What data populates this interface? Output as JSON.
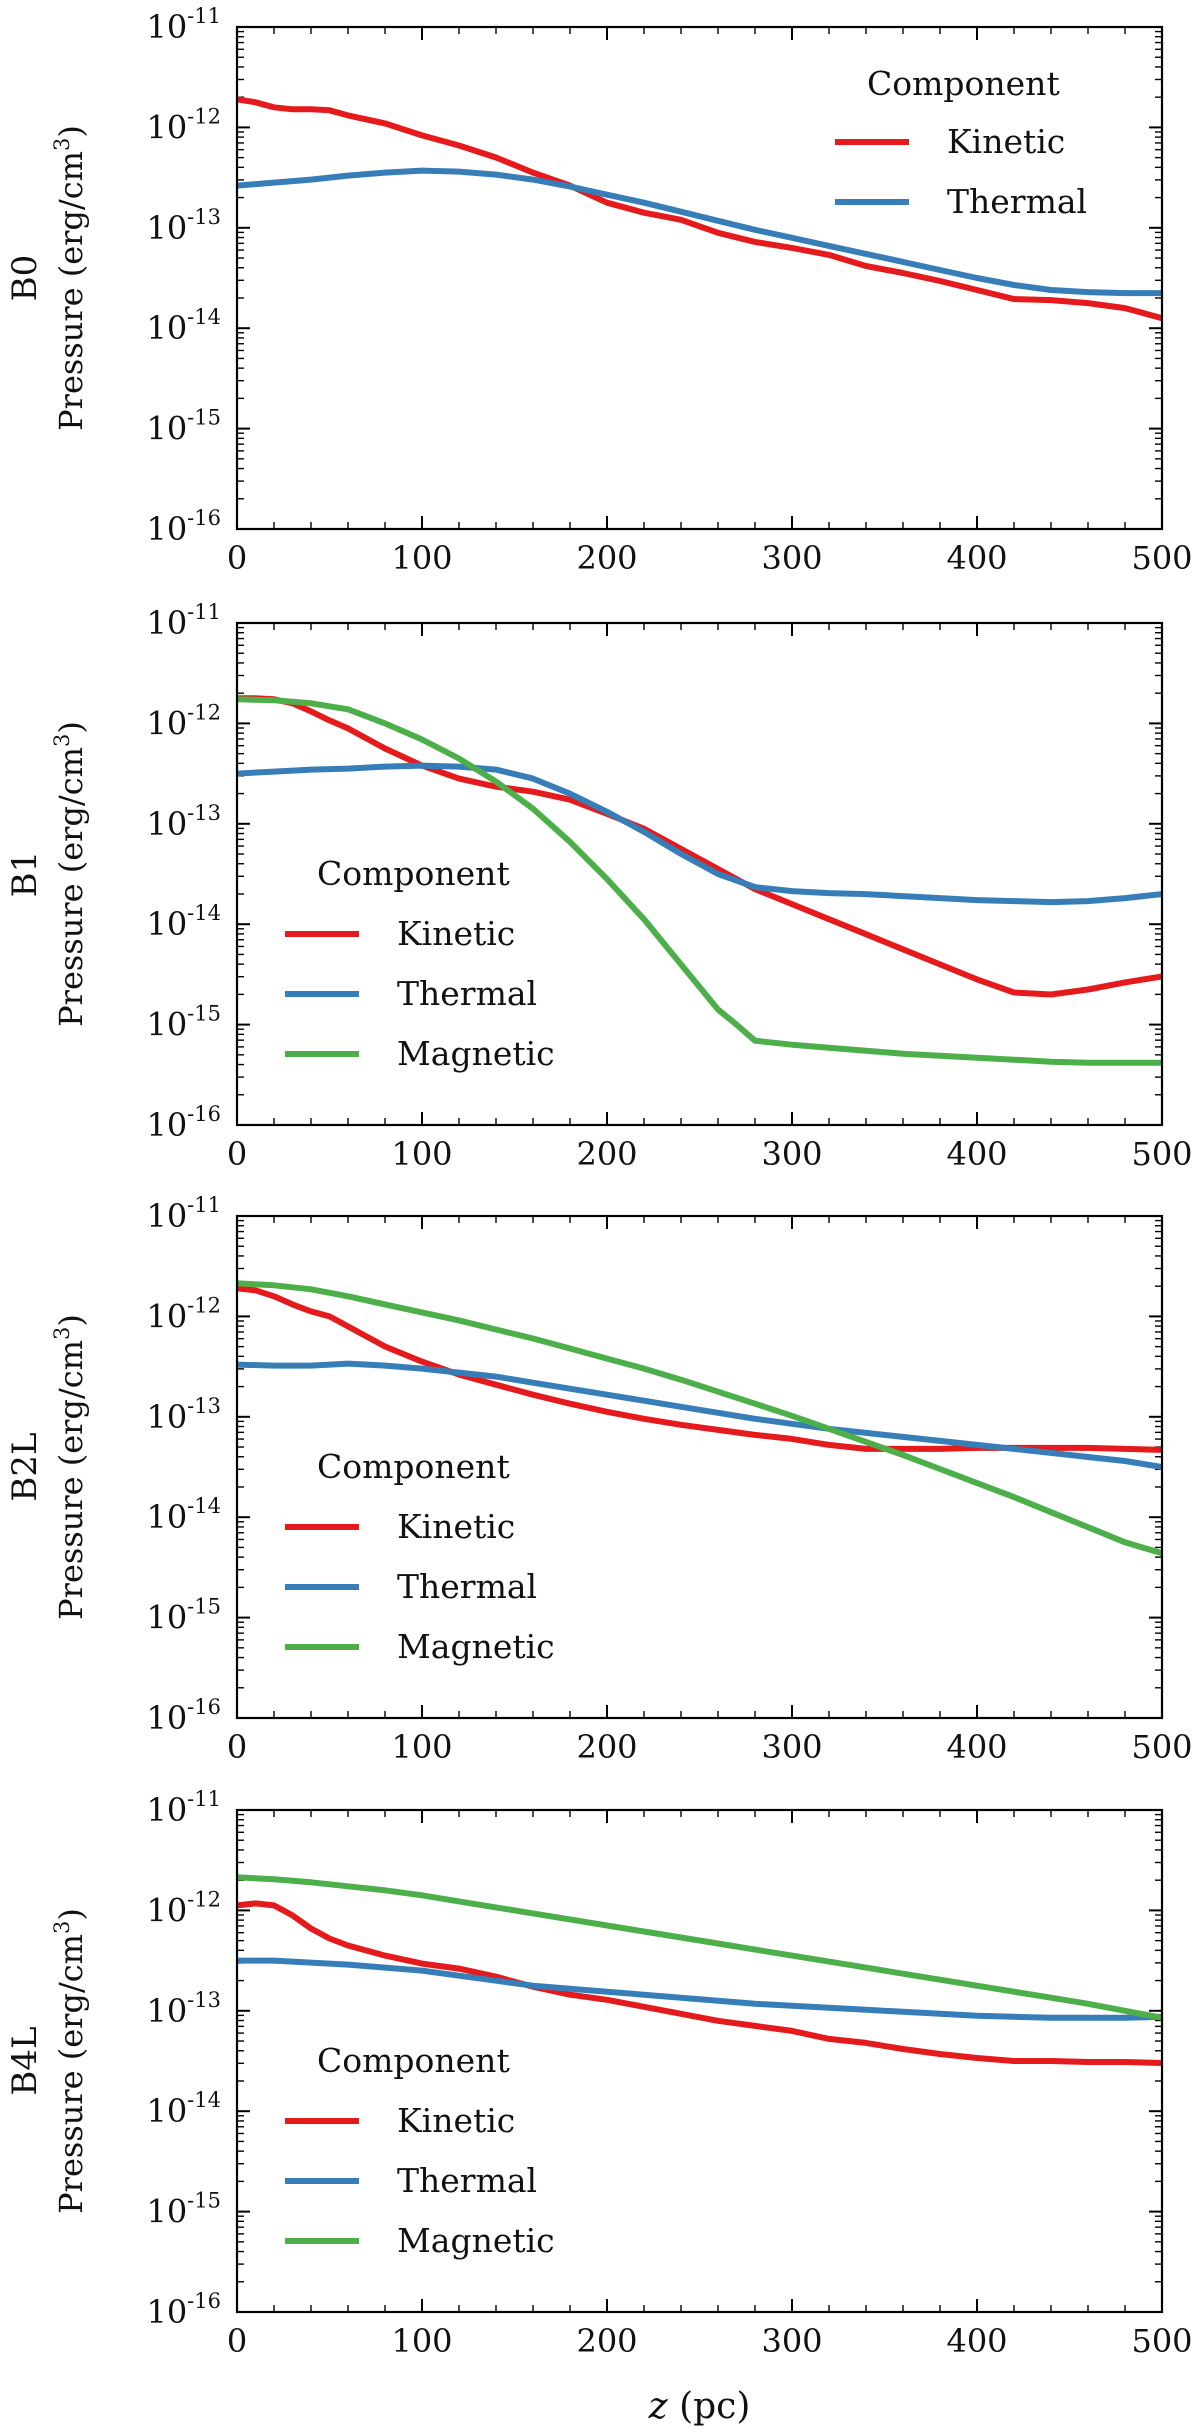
{
  "x_axis_label": {
    "var": "z",
    "unit": "(pc)"
  },
  "legend_title": "Component",
  "colors": {
    "Kinetic": "#e41a1c",
    "Thermal": "#377eb8",
    "Magnetic": "#4daf4a"
  },
  "chart_data": [
    {
      "type": "line",
      "panel": "B0",
      "ylabel": "Pressure (erg/cm",
      "ylabel_exp": "3",
      "ylabel_close": ")",
      "yscale": "log",
      "ylim": [
        -16,
        -11
      ],
      "xlim": [
        0,
        500
      ],
      "xticks": [
        "0",
        "100",
        "200",
        "300",
        "400",
        "500"
      ],
      "ytick_base": "10",
      "yticks": [
        "-16",
        "-15",
        "-14",
        "-13",
        "-12",
        "-11"
      ],
      "legend_loc": "top-right",
      "series": [
        {
          "name": "Kinetic",
          "x": [
            0,
            10,
            20,
            30,
            40,
            50,
            60,
            80,
            100,
            120,
            140,
            160,
            180,
            200,
            220,
            240,
            260,
            280,
            300,
            320,
            340,
            360,
            380,
            400,
            420,
            440,
            460,
            480,
            500
          ],
          "log10_y": [
            -11.72,
            -11.75,
            -11.8,
            -11.82,
            -11.82,
            -11.83,
            -11.88,
            -11.96,
            -12.08,
            -12.18,
            -12.3,
            -12.45,
            -12.58,
            -12.75,
            -12.85,
            -12.92,
            -13.05,
            -13.14,
            -13.2,
            -13.27,
            -13.38,
            -13.45,
            -13.53,
            -13.62,
            -13.71,
            -13.72,
            -13.75,
            -13.8,
            -13.9
          ]
        },
        {
          "name": "Thermal",
          "x": [
            0,
            20,
            40,
            60,
            80,
            100,
            120,
            140,
            160,
            180,
            200,
            220,
            240,
            260,
            280,
            300,
            320,
            340,
            360,
            380,
            400,
            420,
            440,
            460,
            480,
            500
          ],
          "log10_y": [
            -12.58,
            -12.55,
            -12.52,
            -12.48,
            -12.45,
            -12.43,
            -12.44,
            -12.47,
            -12.52,
            -12.59,
            -12.67,
            -12.75,
            -12.84,
            -12.93,
            -13.02,
            -13.1,
            -13.18,
            -13.26,
            -13.34,
            -13.42,
            -13.5,
            -13.57,
            -13.62,
            -13.64,
            -13.65,
            -13.65
          ]
        }
      ]
    },
    {
      "type": "line",
      "panel": "B1",
      "ylabel": "Pressure (erg/cm",
      "ylabel_exp": "3",
      "ylabel_close": ")",
      "yscale": "log",
      "ylim": [
        -16,
        -11
      ],
      "xlim": [
        0,
        500
      ],
      "xticks": [
        "0",
        "100",
        "200",
        "300",
        "400",
        "500"
      ],
      "ytick_base": "10",
      "yticks": [
        "-16",
        "-15",
        "-14",
        "-13",
        "-12",
        "-11"
      ],
      "legend_loc": "lower-left",
      "series": [
        {
          "name": "Kinetic",
          "x": [
            0,
            10,
            20,
            30,
            40,
            50,
            60,
            80,
            100,
            120,
            140,
            160,
            180,
            200,
            220,
            240,
            260,
            280,
            300,
            320,
            340,
            360,
            380,
            400,
            420,
            440,
            460,
            480,
            500
          ],
          "log10_y": [
            -11.75,
            -11.75,
            -11.76,
            -11.8,
            -11.88,
            -11.97,
            -12.05,
            -12.25,
            -12.42,
            -12.55,
            -12.63,
            -12.68,
            -12.76,
            -12.9,
            -13.05,
            -13.25,
            -13.45,
            -13.65,
            -13.8,
            -13.95,
            -14.1,
            -14.25,
            -14.4,
            -14.55,
            -14.68,
            -14.7,
            -14.65,
            -14.58,
            -14.52
          ]
        },
        {
          "name": "Thermal",
          "x": [
            0,
            20,
            40,
            60,
            80,
            100,
            120,
            140,
            160,
            180,
            200,
            220,
            240,
            260,
            280,
            300,
            320,
            340,
            360,
            380,
            400,
            420,
            440,
            460,
            480,
            500
          ],
          "log10_y": [
            -12.5,
            -12.48,
            -12.46,
            -12.45,
            -12.43,
            -12.42,
            -12.43,
            -12.46,
            -12.55,
            -12.7,
            -12.88,
            -13.08,
            -13.3,
            -13.5,
            -13.63,
            -13.67,
            -13.69,
            -13.7,
            -13.72,
            -13.74,
            -13.76,
            -13.77,
            -13.78,
            -13.77,
            -13.74,
            -13.7
          ]
        },
        {
          "name": "Magnetic",
          "x": [
            0,
            20,
            40,
            60,
            80,
            100,
            120,
            140,
            160,
            180,
            200,
            220,
            240,
            260,
            270,
            280,
            300,
            320,
            340,
            360,
            380,
            400,
            420,
            440,
            460,
            480,
            500
          ],
          "log10_y": [
            -11.76,
            -11.77,
            -11.8,
            -11.86,
            -12.0,
            -12.16,
            -12.35,
            -12.58,
            -12.85,
            -13.18,
            -13.55,
            -13.95,
            -14.4,
            -14.85,
            -15.0,
            -15.16,
            -15.2,
            -15.23,
            -15.26,
            -15.29,
            -15.31,
            -15.33,
            -15.35,
            -15.37,
            -15.38,
            -15.38,
            -15.38
          ]
        }
      ]
    },
    {
      "type": "line",
      "panel": "B2L",
      "ylabel": "Pressure (erg/cm",
      "ylabel_exp": "3",
      "ylabel_close": ")",
      "yscale": "log",
      "ylim": [
        -16,
        -11
      ],
      "xlim": [
        0,
        500
      ],
      "xticks": [
        "0",
        "100",
        "200",
        "300",
        "400",
        "500"
      ],
      "ytick_base": "10",
      "yticks": [
        "-16",
        "-15",
        "-14",
        "-13",
        "-12",
        "-11"
      ],
      "legend_loc": "lower-left",
      "series": [
        {
          "name": "Kinetic",
          "x": [
            0,
            10,
            20,
            30,
            40,
            50,
            60,
            80,
            100,
            120,
            140,
            160,
            180,
            200,
            220,
            240,
            260,
            280,
            300,
            320,
            340,
            360,
            380,
            400,
            420,
            440,
            460,
            480,
            500
          ],
          "log10_y": [
            -11.72,
            -11.74,
            -11.8,
            -11.88,
            -11.95,
            -12.0,
            -12.1,
            -12.3,
            -12.45,
            -12.58,
            -12.68,
            -12.78,
            -12.87,
            -12.95,
            -13.02,
            -13.08,
            -13.13,
            -13.18,
            -13.22,
            -13.28,
            -13.32,
            -13.32,
            -13.32,
            -13.31,
            -13.31,
            -13.31,
            -13.31,
            -13.32,
            -13.33
          ]
        },
        {
          "name": "Thermal",
          "x": [
            0,
            20,
            40,
            60,
            80,
            100,
            120,
            140,
            160,
            180,
            200,
            220,
            240,
            260,
            280,
            300,
            320,
            340,
            360,
            380,
            400,
            420,
            440,
            460,
            480,
            500
          ],
          "log10_y": [
            -12.48,
            -12.49,
            -12.49,
            -12.47,
            -12.49,
            -12.52,
            -12.56,
            -12.6,
            -12.66,
            -12.72,
            -12.78,
            -12.84,
            -12.9,
            -12.96,
            -13.02,
            -13.07,
            -13.12,
            -13.16,
            -13.2,
            -13.24,
            -13.28,
            -13.32,
            -13.36,
            -13.4,
            -13.44,
            -13.5
          ]
        },
        {
          "name": "Magnetic",
          "x": [
            0,
            20,
            40,
            60,
            80,
            100,
            120,
            140,
            160,
            180,
            200,
            220,
            240,
            260,
            280,
            300,
            320,
            340,
            360,
            380,
            400,
            420,
            440,
            460,
            480,
            500
          ],
          "log10_y": [
            -11.67,
            -11.69,
            -11.73,
            -11.8,
            -11.88,
            -11.96,
            -12.04,
            -12.13,
            -12.22,
            -12.32,
            -12.42,
            -12.52,
            -12.63,
            -12.75,
            -12.87,
            -12.99,
            -13.12,
            -13.25,
            -13.38,
            -13.52,
            -13.66,
            -13.8,
            -13.95,
            -14.1,
            -14.25,
            -14.36
          ]
        }
      ]
    },
    {
      "type": "line",
      "panel": "B4L",
      "ylabel": "Pressure (erg/cm",
      "ylabel_exp": "3",
      "ylabel_close": ")",
      "yscale": "log",
      "ylim": [
        -16,
        -11
      ],
      "xlim": [
        0,
        500
      ],
      "xticks": [
        "0",
        "100",
        "200",
        "300",
        "400",
        "500"
      ],
      "ytick_base": "10",
      "yticks": [
        "-16",
        "-15",
        "-14",
        "-13",
        "-12",
        "-11"
      ],
      "legend_loc": "lower-left",
      "series": [
        {
          "name": "Kinetic",
          "x": [
            0,
            10,
            20,
            30,
            40,
            50,
            60,
            80,
            100,
            120,
            140,
            160,
            180,
            200,
            220,
            240,
            260,
            280,
            300,
            320,
            340,
            360,
            380,
            400,
            420,
            440,
            460,
            480,
            500
          ],
          "log10_y": [
            -11.95,
            -11.93,
            -11.95,
            -12.05,
            -12.18,
            -12.28,
            -12.35,
            -12.45,
            -12.53,
            -12.58,
            -12.66,
            -12.76,
            -12.84,
            -12.89,
            -12.96,
            -13.03,
            -13.1,
            -13.15,
            -13.2,
            -13.28,
            -13.32,
            -13.38,
            -13.43,
            -13.47,
            -13.5,
            -13.5,
            -13.51,
            -13.51,
            -13.52
          ]
        },
        {
          "name": "Thermal",
          "x": [
            0,
            20,
            40,
            60,
            80,
            100,
            120,
            140,
            160,
            180,
            200,
            220,
            240,
            260,
            280,
            300,
            320,
            340,
            360,
            380,
            400,
            420,
            440,
            460,
            480,
            500
          ],
          "log10_y": [
            -12.5,
            -12.5,
            -12.52,
            -12.54,
            -12.57,
            -12.6,
            -12.65,
            -12.7,
            -12.75,
            -12.78,
            -12.81,
            -12.84,
            -12.87,
            -12.9,
            -12.93,
            -12.95,
            -12.97,
            -12.99,
            -13.01,
            -13.03,
            -13.05,
            -13.06,
            -13.07,
            -13.07,
            -13.07,
            -13.06
          ]
        },
        {
          "name": "Magnetic",
          "x": [
            0,
            20,
            40,
            60,
            80,
            100,
            120,
            140,
            160,
            180,
            200,
            220,
            240,
            260,
            280,
            300,
            320,
            340,
            360,
            380,
            400,
            420,
            440,
            460,
            480,
            500
          ],
          "log10_y": [
            -11.67,
            -11.69,
            -11.72,
            -11.76,
            -11.8,
            -11.85,
            -11.91,
            -11.97,
            -12.03,
            -12.09,
            -12.15,
            -12.21,
            -12.27,
            -12.33,
            -12.39,
            -12.45,
            -12.51,
            -12.57,
            -12.63,
            -12.69,
            -12.75,
            -12.81,
            -12.87,
            -12.93,
            -13.0,
            -13.07
          ]
        }
      ]
    }
  ]
}
